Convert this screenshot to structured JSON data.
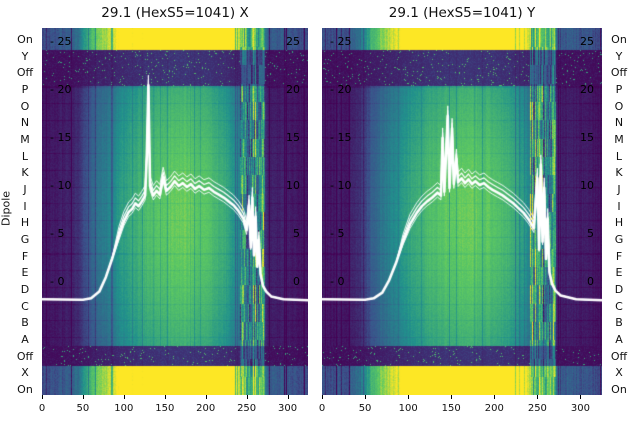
{
  "figure": {
    "dipole_axis_label": "Dipole"
  },
  "row_labels": [
    "On",
    "Y",
    "Off",
    "P",
    "O",
    "N",
    "M",
    "L",
    "K",
    "J",
    "I",
    "H",
    "G",
    "F",
    "E",
    "D",
    "C",
    "B",
    "A",
    "Off",
    "X",
    "On"
  ],
  "chart_data": [
    {
      "type": "heatmap",
      "title": "29.1 (HexS5=1041) X",
      "x_range": [
        0,
        325
      ],
      "x_ticks": [
        0,
        50,
        100,
        150,
        200,
        250,
        300
      ],
      "inner_y_ticks": [
        25,
        20,
        15,
        10,
        5,
        0
      ],
      "colormap": "viridis",
      "colormap_colors": [
        "#440154",
        "#3b528b",
        "#21918c",
        "#5ec962",
        "#fde725"
      ],
      "row_axis": "Dipole",
      "intensity_profile": [
        [
          0,
          0.06
        ],
        [
          30,
          0.08
        ],
        [
          45,
          0.14
        ],
        [
          60,
          0.3
        ],
        [
          80,
          0.4
        ],
        [
          100,
          0.52
        ],
        [
          125,
          0.62
        ],
        [
          150,
          0.68
        ],
        [
          175,
          0.7
        ],
        [
          200,
          0.66
        ],
        [
          220,
          0.58
        ],
        [
          235,
          0.48
        ],
        [
          242,
          0.4
        ],
        [
          268,
          0.22
        ],
        [
          275,
          0.1
        ],
        [
          325,
          0.05
        ]
      ],
      "noise_stripes_x": [
        242,
        272
      ],
      "bands": {
        "bright_top": [
          0,
          0.06
        ],
        "dark_top": [
          0.06,
          0.158
        ],
        "body": [
          0.158,
          0.866
        ],
        "dark_bottom": [
          0.866,
          0.921
        ],
        "bright_bottom": [
          0.921,
          1.0
        ]
      },
      "line": {
        "color": "#ffffff",
        "points": [
          [
            0,
            -1.8
          ],
          [
            50,
            -1.85
          ],
          [
            60,
            -1.7
          ],
          [
            70,
            -1.0
          ],
          [
            78,
            0.5
          ],
          [
            86,
            2.5
          ],
          [
            94,
            4.8
          ],
          [
            100,
            6.3
          ],
          [
            106,
            7.3
          ],
          [
            110,
            7.6
          ],
          [
            114,
            8.2
          ],
          [
            118,
            7.9
          ],
          [
            122,
            8.4
          ],
          [
            126,
            9.0
          ],
          [
            128,
            13.0
          ],
          [
            130,
            20.5
          ],
          [
            132,
            10.0
          ],
          [
            136,
            9.0
          ],
          [
            140,
            9.5
          ],
          [
            144,
            9.1
          ],
          [
            148,
            10.9
          ],
          [
            152,
            9.5
          ],
          [
            157,
            9.9
          ],
          [
            162,
            10.5
          ],
          [
            167,
            10.0
          ],
          [
            172,
            10.3
          ],
          [
            177,
            9.9
          ],
          [
            182,
            10.2
          ],
          [
            187,
            9.7
          ],
          [
            192,
            10.0
          ],
          [
            198,
            9.6
          ],
          [
            204,
            9.8
          ],
          [
            210,
            9.4
          ],
          [
            216,
            9.1
          ],
          [
            222,
            8.8
          ],
          [
            228,
            8.4
          ],
          [
            234,
            8.0
          ],
          [
            240,
            7.4
          ],
          [
            246,
            6.6
          ],
          [
            250,
            5.4
          ],
          [
            253,
            8.0
          ],
          [
            255,
            3.6
          ],
          [
            257,
            8.8
          ],
          [
            259,
            2.8
          ],
          [
            261,
            6.8
          ],
          [
            263,
            1.6
          ],
          [
            265,
            4.4
          ],
          [
            267,
            0.8
          ],
          [
            270,
            -0.4
          ],
          [
            274,
            -1.0
          ],
          [
            280,
            -1.5
          ],
          [
            295,
            -1.8
          ],
          [
            325,
            -1.9
          ]
        ]
      }
    },
    {
      "type": "heatmap",
      "title": "29.1 (HexS5=1041) Y",
      "x_range": [
        0,
        325
      ],
      "x_ticks": [
        0,
        50,
        100,
        150,
        200,
        250,
        300
      ],
      "inner_y_ticks": [
        25,
        20,
        15,
        10,
        5,
        0
      ],
      "colormap": "viridis",
      "colormap_colors": [
        "#440154",
        "#3b528b",
        "#21918c",
        "#5ec962",
        "#fde725"
      ],
      "row_axis": "Dipole",
      "intensity_profile": [
        [
          0,
          0.06
        ],
        [
          30,
          0.08
        ],
        [
          45,
          0.14
        ],
        [
          60,
          0.3
        ],
        [
          80,
          0.41
        ],
        [
          100,
          0.53
        ],
        [
          125,
          0.63
        ],
        [
          150,
          0.69
        ],
        [
          175,
          0.7
        ],
        [
          200,
          0.66
        ],
        [
          220,
          0.58
        ],
        [
          235,
          0.48
        ],
        [
          242,
          0.4
        ],
        [
          268,
          0.22
        ],
        [
          275,
          0.1
        ],
        [
          325,
          0.05
        ]
      ],
      "noise_stripes_x": [
        242,
        272
      ],
      "bands": {
        "bright_top": [
          0,
          0.06
        ],
        "dark_top": [
          0.06,
          0.158
        ],
        "body": [
          0.158,
          0.866
        ],
        "dark_bottom": [
          0.866,
          0.921
        ],
        "bright_bottom": [
          0.921,
          1.0
        ]
      },
      "line": {
        "color": "#ffffff",
        "points": [
          [
            0,
            -1.8
          ],
          [
            50,
            -1.85
          ],
          [
            60,
            -1.7
          ],
          [
            70,
            -1.1
          ],
          [
            78,
            0.2
          ],
          [
            86,
            2.0
          ],
          [
            94,
            4.2
          ],
          [
            102,
            6.0
          ],
          [
            110,
            7.2
          ],
          [
            116,
            7.9
          ],
          [
            122,
            8.4
          ],
          [
            128,
            8.8
          ],
          [
            134,
            9.3
          ],
          [
            138,
            9.0
          ],
          [
            140,
            15.0
          ],
          [
            142,
            9.4
          ],
          [
            146,
            17.3
          ],
          [
            148,
            9.8
          ],
          [
            151,
            16.0
          ],
          [
            153,
            10.2
          ],
          [
            156,
            12.8
          ],
          [
            158,
            10.4
          ],
          [
            162,
            10.8
          ],
          [
            166,
            10.3
          ],
          [
            170,
            10.7
          ],
          [
            174,
            10.2
          ],
          [
            178,
            10.5
          ],
          [
            183,
            10.1
          ],
          [
            188,
            10.3
          ],
          [
            193,
            9.9
          ],
          [
            198,
            9.6
          ],
          [
            204,
            9.3
          ],
          [
            210,
            9.0
          ],
          [
            216,
            8.6
          ],
          [
            222,
            8.2
          ],
          [
            228,
            7.7
          ],
          [
            234,
            7.2
          ],
          [
            240,
            6.5
          ],
          [
            246,
            5.6
          ],
          [
            250,
            10.8
          ],
          [
            252,
            3.4
          ],
          [
            254,
            12.2
          ],
          [
            256,
            4.2
          ],
          [
            258,
            9.8
          ],
          [
            260,
            2.4
          ],
          [
            262,
            6.6
          ],
          [
            264,
            1.0
          ],
          [
            267,
            -0.2
          ],
          [
            271,
            -0.9
          ],
          [
            277,
            -1.4
          ],
          [
            295,
            -1.8
          ],
          [
            325,
            -1.9
          ]
        ]
      }
    }
  ]
}
